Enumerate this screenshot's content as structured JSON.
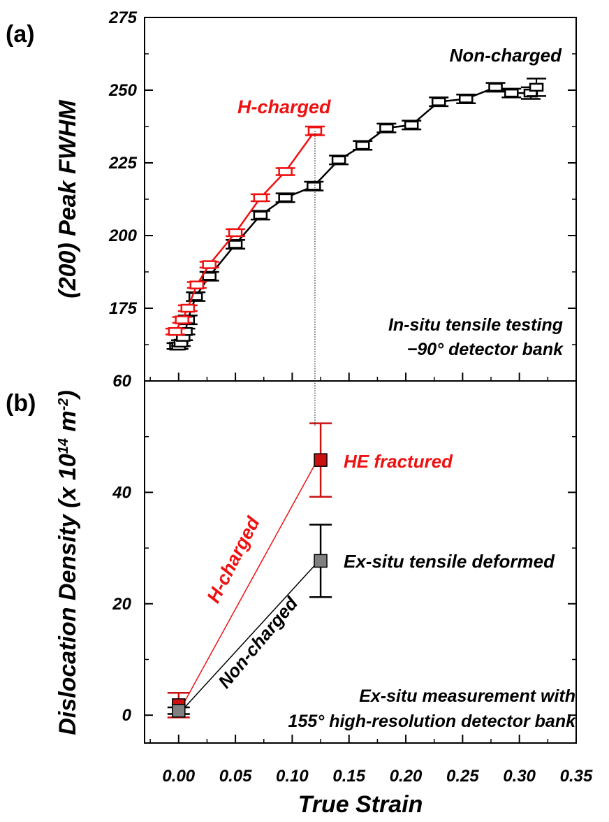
{
  "panel_labels": {
    "a": "(a)",
    "b": "(b)"
  },
  "colors": {
    "h_charged": "#ee1111",
    "non_charged": "#000000",
    "exsitu_red": "#cc1111",
    "exsitu_gray": "#808080"
  },
  "chart_data": [
    {
      "type": "line",
      "panel": "(a)",
      "xlabel": "True Strain",
      "ylabel": "(200) Peak FWHM",
      "xlim": [
        -0.03,
        0.35
      ],
      "ylim": [
        150,
        275
      ],
      "x_ticks": [
        "0.00",
        "0.05",
        "0.10",
        "0.15",
        "0.20",
        "0.25",
        "0.30",
        "0.35"
      ],
      "y_ticks": [
        "175",
        "200",
        "225",
        "250",
        "275"
      ],
      "annotation": [
        "In-situ tensile testing",
        "−90° detector bank"
      ],
      "series": [
        {
          "name": "Non-charged",
          "color": "#000000",
          "x": [
            -0.002,
            0.0,
            0.002,
            0.004,
            0.006,
            0.008,
            0.015,
            0.027,
            0.05,
            0.072,
            0.094,
            0.119,
            0.141,
            0.162,
            0.183,
            0.205,
            0.229,
            0.253,
            0.279,
            0.293,
            0.31,
            0.315
          ],
          "y": [
            162,
            162,
            163,
            165,
            167,
            171,
            179,
            186,
            197,
            207,
            213,
            217,
            226,
            231,
            237,
            238,
            246,
            247,
            251,
            249,
            249,
            251
          ],
          "err": [
            1,
            1,
            1,
            1,
            1,
            1.5,
            1.5,
            1.5,
            1.5,
            1.5,
            1.5,
            1.5,
            1.5,
            1.5,
            1.5,
            1.5,
            1.5,
            1.5,
            1.5,
            1.5,
            2,
            3
          ]
        },
        {
          "name": "H-charged",
          "color": "#ee1111",
          "x": [
            -0.003,
            0.003,
            0.008,
            0.016,
            0.027,
            0.05,
            0.072,
            0.094,
            0.12
          ],
          "y": [
            167,
            171,
            175,
            183,
            190,
            201,
            213,
            222,
            236
          ],
          "err": [
            1,
            1,
            1,
            1,
            1,
            1.2,
            1.2,
            1.2,
            1.5
          ]
        }
      ]
    },
    {
      "type": "scatter",
      "panel": "(b)",
      "xlabel": "True Strain",
      "ylabel": "Dislocation Density (x 10¹⁴ m⁻²)",
      "xlim": [
        -0.03,
        0.35
      ],
      "ylim": [
        -5,
        60
      ],
      "x_ticks": [
        "0.00",
        "0.05",
        "0.10",
        "0.15",
        "0.20",
        "0.25",
        "0.30",
        "0.35"
      ],
      "y_ticks": [
        "0",
        "20",
        "40",
        "60"
      ],
      "annotation": [
        "Ex-situ measurement with",
        "155° high-resolution detector bank"
      ],
      "series": [
        {
          "name": "H-charged",
          "color": "#cc1111",
          "x": [
            0.0,
            0.125
          ],
          "y": [
            1.8,
            45.8
          ],
          "err": [
            2.2,
            6.6
          ],
          "point_labels": [
            "",
            "HE fractured"
          ]
        },
        {
          "name": "Non-charged",
          "color": "#808080",
          "x": [
            0.0,
            0.125
          ],
          "y": [
            0.8,
            27.7
          ],
          "err": [
            0.6,
            6.5
          ],
          "point_labels": [
            "",
            "Ex-situ tensile deformed"
          ]
        }
      ]
    }
  ]
}
